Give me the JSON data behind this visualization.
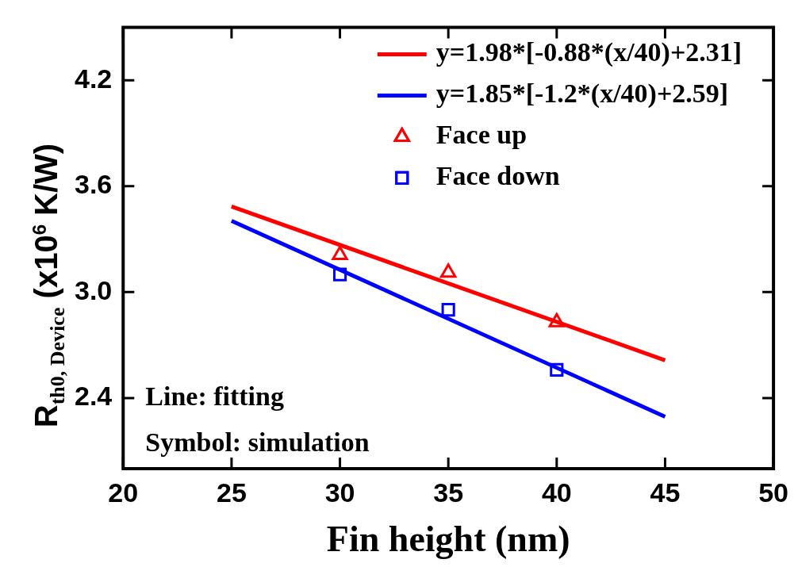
{
  "chart_data": {
    "type": "scatter",
    "xlabel": "Fin height (nm)",
    "ylabel": "R$_{th0, Device}$ (x10$^{6}$ K/W)",
    "xlim": [
      20,
      50
    ],
    "xticks": [
      20,
      25,
      30,
      35,
      40,
      45,
      50
    ],
    "ylim": [
      2.0,
      4.5
    ],
    "yticks": [
      2.4,
      {
        "value": 3.0,
        "label": "3.0"
      },
      3.6,
      4.2
    ],
    "grid": false,
    "legend": "top right",
    "series": [
      {
        "name": "y=1.98*[-0.88*(x/40)+2.31]",
        "type": "line",
        "color": "#ff0000",
        "x": [
          25,
          45
        ],
        "values": [
          3.485,
          2.614
        ],
        "marker": "none"
      },
      {
        "name": "y=1.85*[-1.2*(x/40)+2.59]",
        "type": "line",
        "color": "#0000ff",
        "x": [
          25,
          45
        ],
        "values": [
          3.404,
          2.294
        ],
        "marker": "none"
      },
      {
        "name": "Face up",
        "type": "scatter",
        "color": "#ff0000",
        "x": [
          30,
          35,
          40
        ],
        "values": [
          3.21,
          3.11,
          2.83
        ],
        "marker": "triangle"
      },
      {
        "name": "Face down",
        "type": "scatter",
        "color": "#0000ff",
        "x": [
          30,
          35,
          40
        ],
        "values": [
          3.1,
          2.9,
          2.56
        ],
        "marker": "square"
      }
    ],
    "annotations": [
      "Line: fitting",
      "Symbol: simulation"
    ]
  }
}
